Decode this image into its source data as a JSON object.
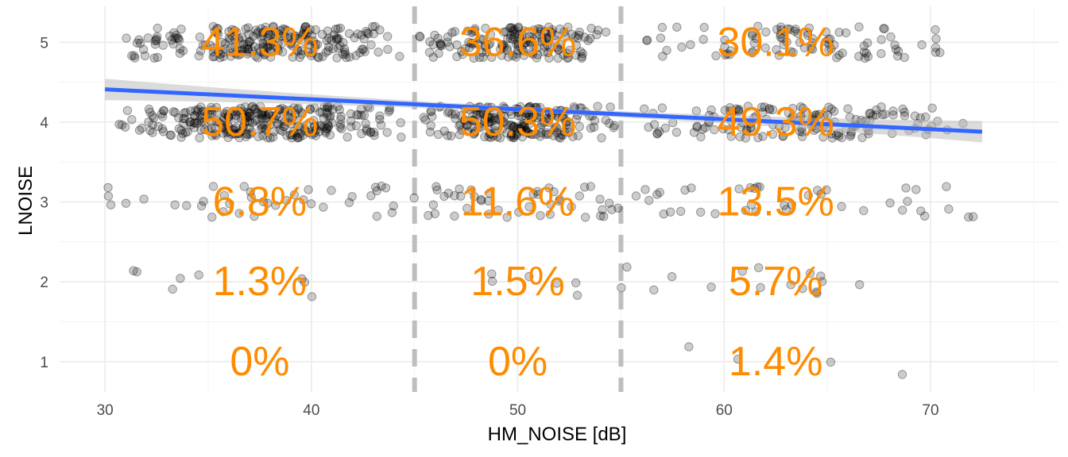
{
  "chart_data": {
    "type": "scatter",
    "xlabel": "HM_NOISE [dB]",
    "ylabel": "LNOISE",
    "xlim": [
      27.8,
      76.2
    ],
    "ylim": [
      0.62,
      5.45
    ],
    "x_ticks": [
      30,
      40,
      50,
      60,
      70
    ],
    "y_ticks": [
      1,
      2,
      3,
      4,
      5
    ],
    "x_tick_labels": [
      "30",
      "40",
      "50",
      "60",
      "70"
    ],
    "y_tick_labels": [
      "1",
      "2",
      "3",
      "4",
      "5"
    ],
    "grid": true,
    "point_color": "#000000",
    "point_opacity": 0.2,
    "jitter": 0.2,
    "cutoffs": [
      45,
      55
    ],
    "cutoff_color": "#bebebe",
    "trend": {
      "x": [
        30,
        72.5
      ],
      "y": [
        4.41,
        3.88
      ],
      "color": "#3366ff",
      "ci_color": "#bdbdbd"
    },
    "label_color": "#ff8c00",
    "group_labels": [
      {
        "x": 37.5,
        "y": 5,
        "text": "41.3%"
      },
      {
        "x": 37.5,
        "y": 4,
        "text": "50.7%"
      },
      {
        "x": 37.5,
        "y": 3,
        "text": "6.8%"
      },
      {
        "x": 37.5,
        "y": 2,
        "text": "1.3%"
      },
      {
        "x": 37.5,
        "y": 1,
        "text": "0%"
      },
      {
        "x": 50,
        "y": 5,
        "text": "36.6%"
      },
      {
        "x": 50,
        "y": 4,
        "text": "50.3%"
      },
      {
        "x": 50,
        "y": 3,
        "text": "11.6%"
      },
      {
        "x": 50,
        "y": 2,
        "text": "1.5%"
      },
      {
        "x": 50,
        "y": 1,
        "text": "0%"
      },
      {
        "x": 62.5,
        "y": 5,
        "text": "30.1%"
      },
      {
        "x": 62.5,
        "y": 4,
        "text": "49.3%"
      },
      {
        "x": 62.5,
        "y": 3,
        "text": "13.5%"
      },
      {
        "x": 62.5,
        "y": 2,
        "text": "5.7%"
      },
      {
        "x": 62.5,
        "y": 1,
        "text": "1.4%"
      }
    ],
    "point_groups": [
      {
        "y": 5,
        "x_range": [
          30,
          45
        ],
        "count": 230
      },
      {
        "y": 5,
        "x_range": [
          45,
          55
        ],
        "count": 160
      },
      {
        "y": 5,
        "x_range": [
          55,
          72
        ],
        "count": 90
      },
      {
        "y": 4,
        "x_range": [
          30,
          45
        ],
        "count": 290
      },
      {
        "y": 4,
        "x_range": [
          45,
          55
        ],
        "count": 220
      },
      {
        "y": 4,
        "x_range": [
          55,
          72.5
        ],
        "count": 150
      },
      {
        "y": 3,
        "x_range": [
          30,
          45
        ],
        "count": 40
      },
      {
        "y": 3,
        "x_range": [
          45,
          55
        ],
        "count": 45
      },
      {
        "y": 3,
        "x_range": [
          55,
          72.5
        ],
        "count": 40
      },
      {
        "y": 2,
        "x_range": [
          30,
          45
        ],
        "count": 8
      },
      {
        "y": 2,
        "x_range": [
          45,
          55
        ],
        "count": 6
      },
      {
        "y": 2,
        "x_range": [
          55,
          70
        ],
        "count": 16
      },
      {
        "y": 1,
        "x_range": [
          55,
          70
        ],
        "count": 4
      }
    ]
  }
}
